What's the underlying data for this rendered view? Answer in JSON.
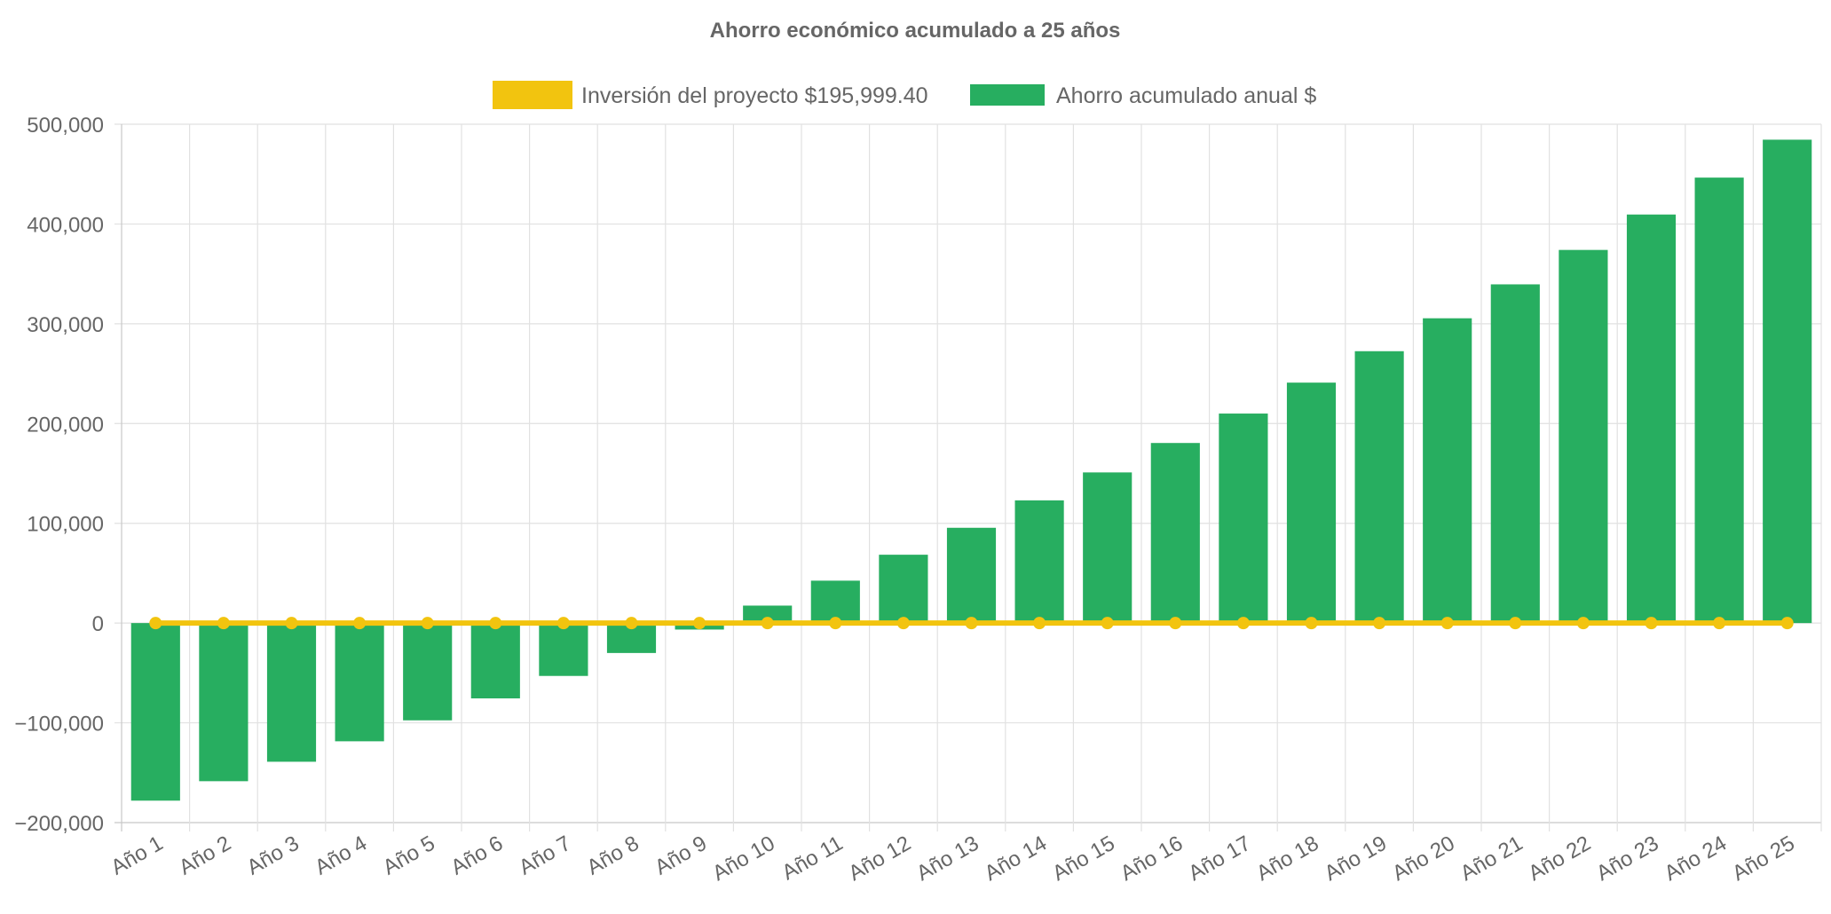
{
  "chart_data": {
    "type": "bar",
    "title": "Ahorro económico acumulado a 25 años",
    "categories": [
      "Año 1",
      "Año 2",
      "Año 3",
      "Año 4",
      "Año 5",
      "Año 6",
      "Año 7",
      "Año 8",
      "Año 9",
      "Año 10",
      "Año 11",
      "Año 12",
      "Año 13",
      "Año 14",
      "Año 15",
      "Año 16",
      "Año 17",
      "Año 18",
      "Año 19",
      "Año 20",
      "Año 21",
      "Año 22",
      "Año 23",
      "Año 24",
      "Año 25"
    ],
    "series": [
      {
        "name": "Inversión del proyecto $195,999.40",
        "type": "line",
        "color": "#f2c40f",
        "values": [
          0,
          0,
          0,
          0,
          0,
          0,
          0,
          0,
          0,
          0,
          0,
          0,
          0,
          0,
          0,
          0,
          0,
          0,
          0,
          0,
          0,
          0,
          0,
          0,
          0
        ]
      },
      {
        "name": "Ahorro acumulado anual $",
        "type": "bar",
        "color": "#27ae60",
        "values": [
          -178000,
          -158500,
          -139000,
          -118500,
          -97500,
          -75500,
          -53000,
          -30000,
          -6500,
          17500,
          42500,
          68500,
          95500,
          123000,
          151000,
          180500,
          210000,
          241000,
          272500,
          305500,
          339500,
          374000,
          409500,
          446500,
          484500
        ]
      }
    ],
    "ylim": [
      -200000,
      500000
    ],
    "yticks": [
      "500,000",
      "400,000",
      "300,000",
      "200,000",
      "100,000",
      "0",
      "−100,000",
      "−200,000"
    ],
    "ytick_values": [
      500000,
      400000,
      300000,
      200000,
      100000,
      0,
      -100000,
      -200000
    ],
    "grid": true,
    "legend_position": "top",
    "xlabel": "",
    "ylabel": ""
  }
}
